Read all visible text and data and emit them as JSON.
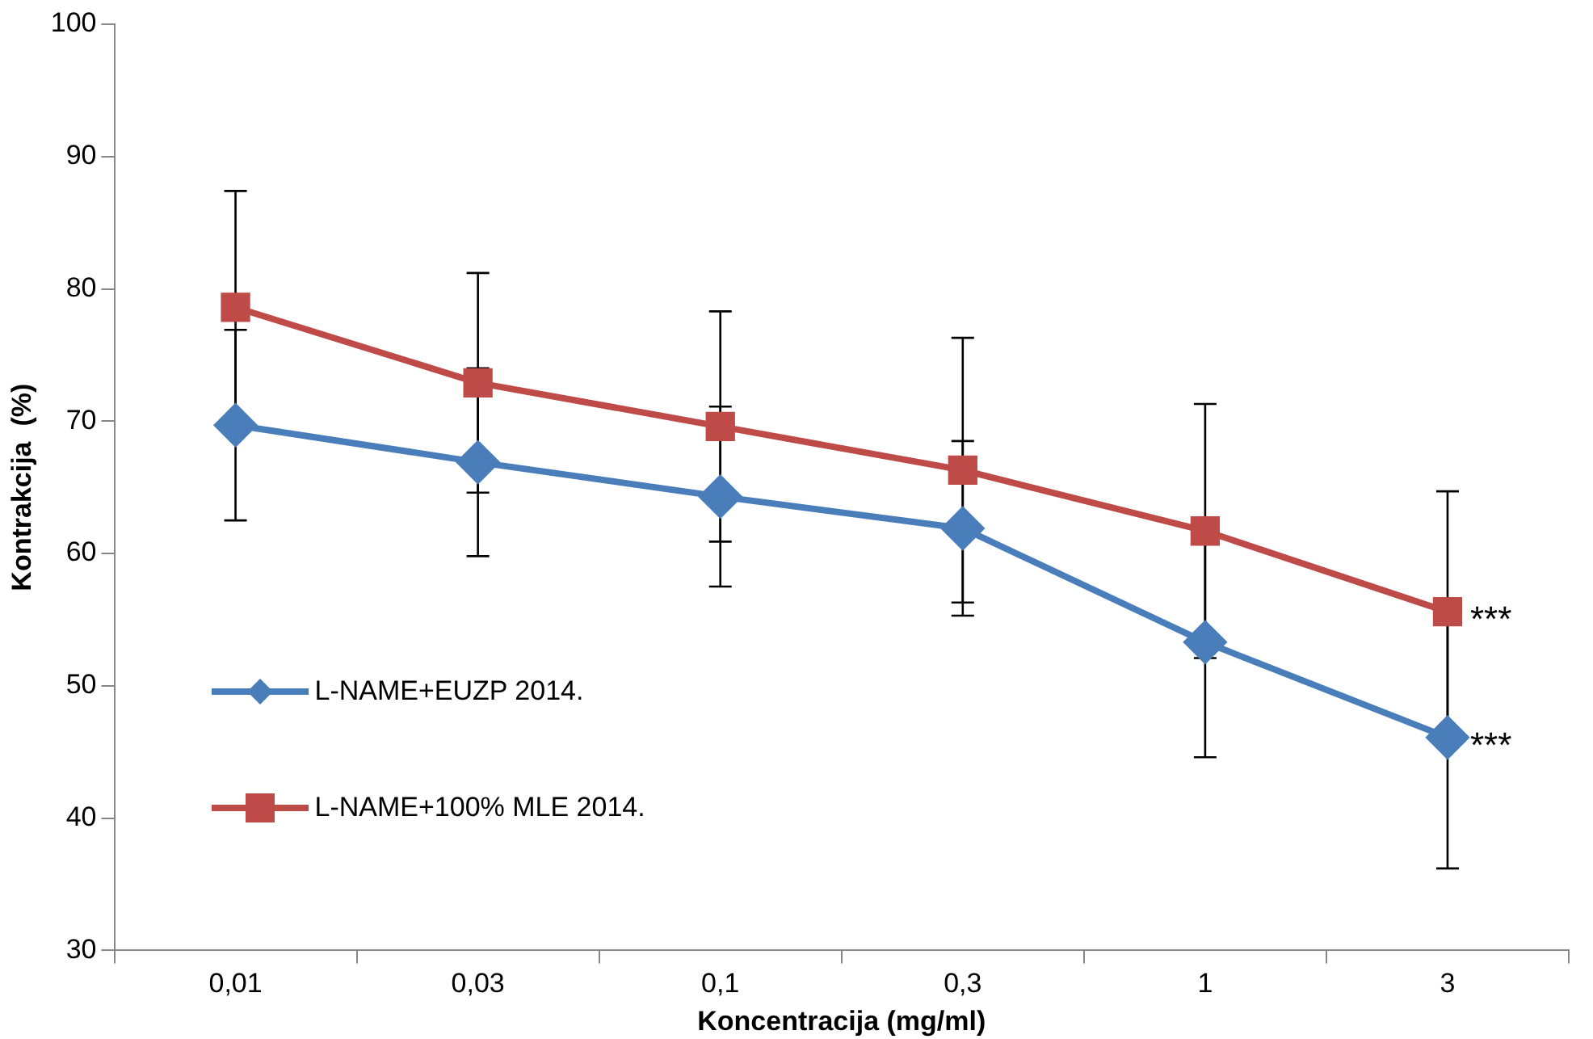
{
  "chart_data": {
    "type": "line",
    "xlabel": "Koncentracija (mg/ml)",
    "ylabel": "Kontrakcija  (%)",
    "categories": [
      "0,01",
      "0,03",
      "0,1",
      "0,3",
      "1",
      "3"
    ],
    "series": [
      {
        "name": "L-NAME+EUZP 2014.",
        "color": "#4a7ebb",
        "marker": "diamond",
        "values": [
          69.7,
          66.9,
          64.3,
          61.9,
          53.3,
          46.1
        ],
        "errors": [
          7.2,
          7.1,
          6.8,
          6.6,
          8.7,
          9.9
        ]
      },
      {
        "name": "L-NAME+100% MLE 2014.",
        "color": "#be4b48",
        "marker": "square",
        "values": [
          78.6,
          72.9,
          69.6,
          66.3,
          61.7,
          55.6
        ],
        "errors": [
          8.8,
          8.3,
          8.7,
          10,
          9.6,
          9.1
        ]
      }
    ],
    "ylim": [
      30,
      100
    ],
    "yticks": [
      30,
      40,
      50,
      60,
      70,
      80,
      90,
      100
    ],
    "grid": false,
    "legend": "left",
    "line_style": "solid",
    "annotations": [
      {
        "text": "***",
        "x": "3",
        "y": 55.6
      },
      {
        "text": "***",
        "x": "3",
        "y": 46.1
      }
    ]
  }
}
